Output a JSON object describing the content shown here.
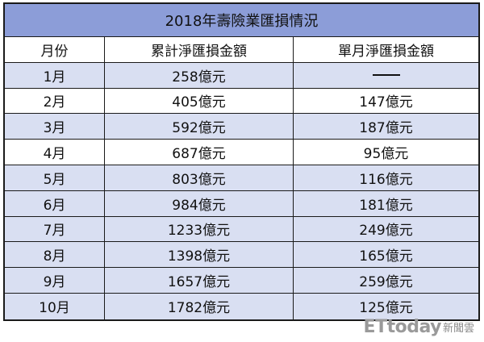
{
  "table": {
    "title": "2018年壽險業匯損情況",
    "headers": [
      "月份",
      "累計淨匯損金額",
      "單月淨匯損金額"
    ],
    "rows": [
      {
        "month": "1月",
        "cumulative": "258億元",
        "monthly": ""
      },
      {
        "month": "2月",
        "cumulative": "405億元",
        "monthly": "147億元"
      },
      {
        "month": "3月",
        "cumulative": "592億元",
        "monthly": "187億元"
      },
      {
        "month": "4月",
        "cumulative": "687億元",
        "monthly": "95億元"
      },
      {
        "month": "5月",
        "cumulative": "803億元",
        "monthly": "116億元"
      },
      {
        "month": "6月",
        "cumulative": "984億元",
        "monthly": "181億元"
      },
      {
        "month": "7月",
        "cumulative": "1233億元",
        "monthly": "249億元"
      },
      {
        "month": "8月",
        "cumulative": "1398億元",
        "monthly": "165億元"
      },
      {
        "month": "9月",
        "cumulative": "1657億元",
        "monthly": "259億元"
      },
      {
        "month": "10月",
        "cumulative": "1782億元",
        "monthly": "125億元"
      }
    ]
  },
  "watermark": {
    "logo": "ETtoday",
    "suffix": "新聞雲"
  },
  "colors": {
    "title_bg": "#8c9dd8",
    "alt_row_bg": "#d9dff2"
  }
}
